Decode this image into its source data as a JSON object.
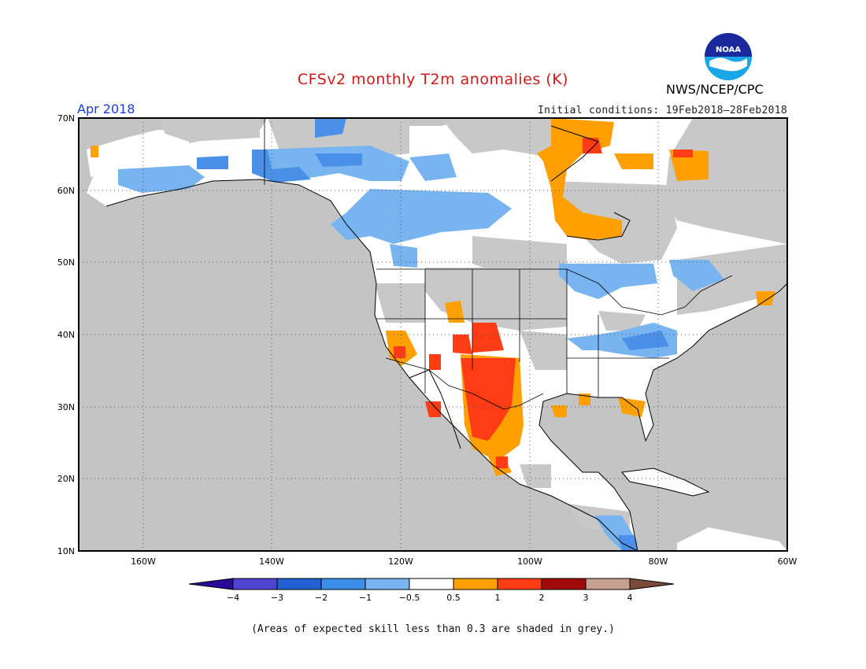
{
  "header": {
    "title": "CFSv2 monthly T2m anomalies (K)",
    "agency": "NWS/NCEP/CPC",
    "month": "Apr 2018",
    "initial_conditions": "Initial conditions: 19Feb2018–28Feb2018"
  },
  "logo": {
    "text": "NOAA",
    "icon": "noaa-logo-icon"
  },
  "map": {
    "lon_range": [
      -170,
      -60
    ],
    "lat_range": [
      10,
      70
    ],
    "lat_ticks": [
      "70N",
      "60N",
      "50N",
      "40N",
      "30N",
      "20N",
      "10N"
    ],
    "lon_ticks": [
      "160W",
      "140W",
      "120W",
      "100W",
      "80W",
      "60W"
    ],
    "grid": "dotted",
    "colors": {
      "grey_low_skill": "#c8c8c8",
      "ocean_grey": "#c4c4c4",
      "white_neutral": "#ffffff",
      "light_blue": "#78b4f0",
      "blue": "#4a90e8",
      "orange": "#ffa000",
      "red_orange": "#ff3c14"
    }
  },
  "colorbar": {
    "labels": [
      "−4",
      "−3",
      "−2",
      "−1",
      "−0.5",
      "0.5",
      "1",
      "2",
      "3",
      "4"
    ],
    "colors": [
      "#2a0a9a",
      "#5045d0",
      "#2060d0",
      "#3c8ee8",
      "#78b4f0",
      "#ffffff",
      "#ffa000",
      "#ff3c14",
      "#a00a0a",
      "#c8a090",
      "#7a4a3a"
    ]
  },
  "footnote": "(Areas of expected skill less than 0.3 are shaded in grey.)"
}
